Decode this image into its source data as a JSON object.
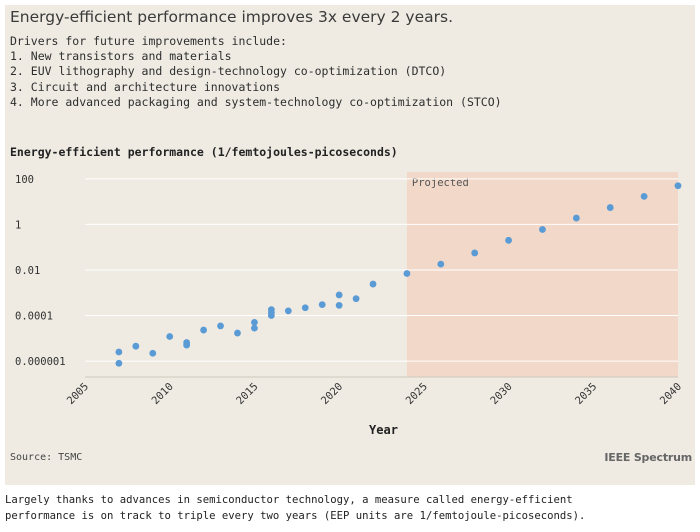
{
  "headline": "Energy-efficient performance improves 3x every 2 years.",
  "drivers": [
    "Drivers for future improvements include:",
    "1. New transistors and materials",
    "2. EUV lithography and design-technology co-optimization (DTCO)",
    "3. Circuit and architecture innovations",
    "4. More advanced packaging and system-technology co-optimization (STCO)"
  ],
  "source": "Source: TSMC",
  "brand": "IEEE Spectrum",
  "caption": [
    "Largely thanks to advances in semiconductor technology, a measure called energy-efficient",
    "performance is on track to triple every two years (EEP units are 1/femtojoule-picoseconds)."
  ],
  "colors": {
    "points": "#5b9bd5",
    "projected_fill": "#f2d2bf",
    "panel": "#efebe3",
    "grid": "#ffffff"
  },
  "chart_data": {
    "type": "scatter",
    "title": "Energy-efficient performance (1/femtojoules-picoseconds)",
    "xlabel": "Year",
    "ylabel": "",
    "y_scale": "log",
    "xlim": [
      2005,
      2040
    ],
    "ylim": [
      2e-07,
      200
    ],
    "x_ticks": [
      2005,
      2010,
      2015,
      2020,
      2025,
      2030,
      2035,
      2040
    ],
    "y_ticks": [
      {
        "value": 1e-06,
        "label": "0.000001"
      },
      {
        "value": 0.0001,
        "label": "0.0001"
      },
      {
        "value": 0.01,
        "label": "0.01"
      },
      {
        "value": 1,
        "label": "1"
      },
      {
        "value": 100,
        "label": "100"
      }
    ],
    "grid": "horizontal",
    "projected_region": {
      "label": "Projected",
      "x_start": 2024,
      "x_end": 2040
    },
    "points": [
      {
        "x": 2007,
        "y": 2.5e-06
      },
      {
        "x": 2007,
        "y": 8e-07
      },
      {
        "x": 2008,
        "y": 4.5e-06
      },
      {
        "x": 2009,
        "y": 2.2e-06
      },
      {
        "x": 2010,
        "y": 1.2e-05
      },
      {
        "x": 2011,
        "y": 6.5e-06
      },
      {
        "x": 2011,
        "y": 5e-06
      },
      {
        "x": 2012,
        "y": 2.3e-05
      },
      {
        "x": 2013,
        "y": 3.5e-05
      },
      {
        "x": 2014,
        "y": 1.7e-05
      },
      {
        "x": 2015,
        "y": 5e-05
      },
      {
        "x": 2015,
        "y": 2.8e-05
      },
      {
        "x": 2016,
        "y": 0.00018
      },
      {
        "x": 2016,
        "y": 0.0001
      },
      {
        "x": 2016,
        "y": 0.000135
      },
      {
        "x": 2017,
        "y": 0.00016
      },
      {
        "x": 2018,
        "y": 0.00022
      },
      {
        "x": 2019,
        "y": 0.0003
      },
      {
        "x": 2020,
        "y": 0.0008
      },
      {
        "x": 2020,
        "y": 0.00028
      },
      {
        "x": 2021,
        "y": 0.00055
      },
      {
        "x": 2022,
        "y": 0.0024
      },
      {
        "x": 2024,
        "y": 0.007
      },
      {
        "x": 2026,
        "y": 0.018
      },
      {
        "x": 2028,
        "y": 0.056
      },
      {
        "x": 2030,
        "y": 0.2
      },
      {
        "x": 2032,
        "y": 0.6
      },
      {
        "x": 2034,
        "y": 1.9
      },
      {
        "x": 2036,
        "y": 5.5
      },
      {
        "x": 2038,
        "y": 17
      },
      {
        "x": 2040,
        "y": 50
      }
    ]
  }
}
